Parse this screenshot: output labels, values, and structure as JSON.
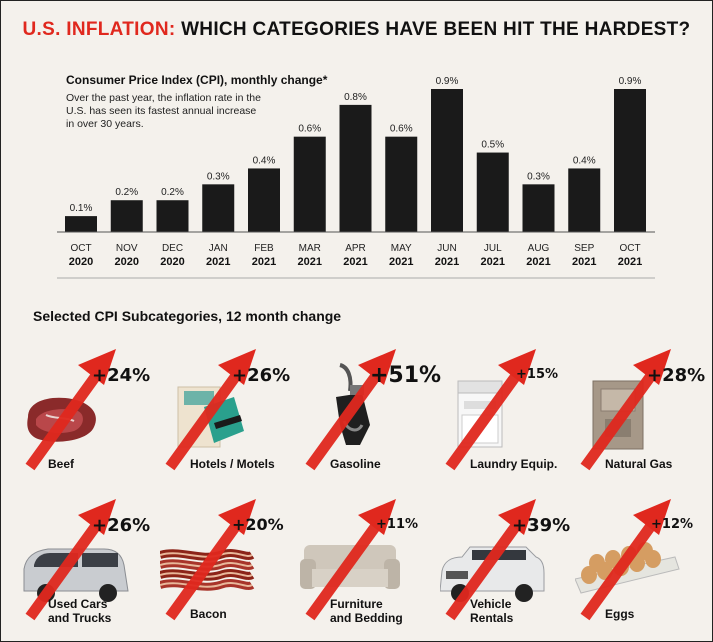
{
  "title": {
    "highlight": "U.S. INFLATION:",
    "rest": "WHICH CATEGORIES HAVE BEEN HIT THE HARDEST?"
  },
  "cpi_heading": "Consumer Price Index (CPI), monthly change*",
  "cpi_description": "Over the past year, the inflation rate in the U.S. has seen its fastest annual increase in over 30 years.",
  "subcategory_heading": "Selected CPI Subcategories, 12 month change",
  "colors": {
    "accent": "#e0281e",
    "bar": "#1a1a1a",
    "background": "#f4f1ec"
  },
  "chart_data": [
    {
      "type": "bar",
      "categories": [
        [
          "OCT",
          "2020"
        ],
        [
          "NOV",
          "2020"
        ],
        [
          "DEC",
          "2020"
        ],
        [
          "JAN",
          "2021"
        ],
        [
          "FEB",
          "2021"
        ],
        [
          "MAR",
          "2021"
        ],
        [
          "APR",
          "2021"
        ],
        [
          "MAY",
          "2021"
        ],
        [
          "JUN",
          "2021"
        ],
        [
          "JUL",
          "2021"
        ],
        [
          "AUG",
          "2021"
        ],
        [
          "SEP",
          "2021"
        ],
        [
          "OCT",
          "2021"
        ]
      ],
      "values": [
        0.1,
        0.2,
        0.2,
        0.3,
        0.4,
        0.6,
        0.8,
        0.6,
        0.9,
        0.5,
        0.3,
        0.4,
        0.9
      ],
      "value_labels": [
        "0.1%",
        "0.2%",
        "0.2%",
        "0.3%",
        "0.4%",
        "0.6%",
        "0.8%",
        "0.6%",
        "0.9%",
        "0.5%",
        "0.3%",
        "0.4%",
        "0.9%"
      ],
      "ylim": [
        0,
        0.9
      ],
      "unit": "%",
      "grid": false
    },
    {
      "type": "bar",
      "categories": [
        "Beef",
        "Hotels / Motels",
        "Gasoline",
        "Laundry Equip.",
        "Natural Gas",
        "Used Cars and Trucks",
        "Bacon",
        "Furniture and Bedding",
        "Vehicle Rentals",
        "Eggs"
      ],
      "values": [
        24,
        26,
        51,
        15,
        28,
        26,
        20,
        11,
        39,
        12
      ],
      "unit": "%"
    }
  ],
  "subcategories": [
    {
      "label": [
        "Beef"
      ],
      "pct": "+24%",
      "icon": "beef-icon",
      "size": "big"
    },
    {
      "label": [
        "Hotels / Motels"
      ],
      "pct": "+26%",
      "icon": "hotel-key-card-icon",
      "size": "big"
    },
    {
      "label": [
        "Gasoline"
      ],
      "pct": "+51%",
      "icon": "gas-nozzle-icon",
      "size": "huge"
    },
    {
      "label": [
        "Laundry Equip."
      ],
      "pct": "+15%",
      "icon": "washing-machine-icon",
      "size": "small"
    },
    {
      "label": [
        "Natural Gas"
      ],
      "pct": "+28%",
      "icon": "gas-furnace-icon",
      "size": "big"
    },
    {
      "label": [
        "Used Cars",
        "and Trucks"
      ],
      "pct": "+26%",
      "icon": "minivan-icon",
      "size": "big"
    },
    {
      "label": [
        "Bacon"
      ],
      "pct": "+20%",
      "icon": "bacon-icon",
      "size": "mid"
    },
    {
      "label": [
        "Furniture",
        "and Bedding"
      ],
      "pct": "+11%",
      "icon": "sofa-icon",
      "size": "small"
    },
    {
      "label": [
        "Vehicle",
        "Rentals"
      ],
      "pct": "+39%",
      "icon": "suv-icon",
      "size": "big"
    },
    {
      "label": [
        "Eggs"
      ],
      "pct": "+12%",
      "icon": "eggs-carton-icon",
      "size": "small"
    }
  ]
}
